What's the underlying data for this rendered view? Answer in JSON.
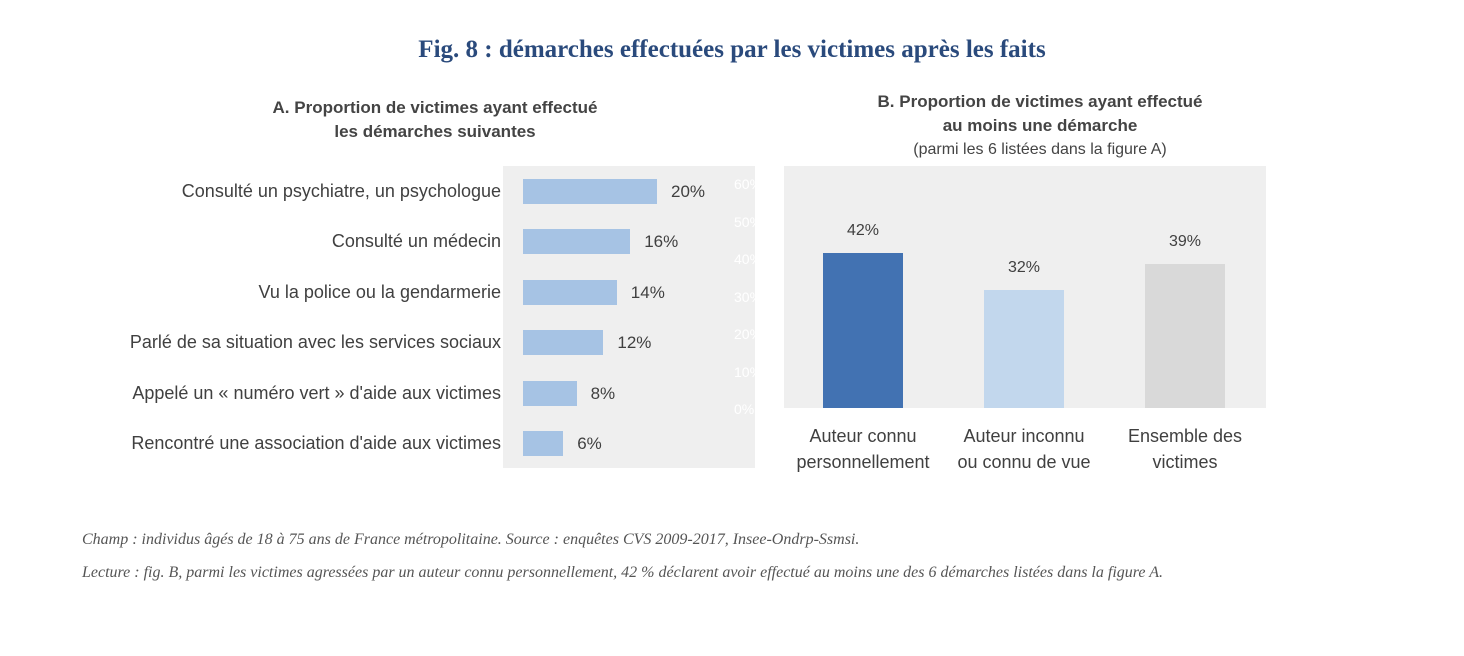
{
  "figure": {
    "title": "Fig. 8 : démarches effectuées par les victimes après les faits",
    "notes": [
      "Champ : individus âgés de 18 à 75 ans de France métropolitaine. Source : enquêtes CVS 2009-2017, Insee-Ondrp-Ssmsi.",
      "Lecture : fig. B, parmi les victimes agressées par un auteur connu personnellement, 42 % déclarent avoir effectué au moins une des 6 démarches listées dans la figure A."
    ]
  },
  "chart_data": [
    {
      "type": "bar",
      "orientation": "horizontal",
      "title_lines": [
        "A. Proportion de victimes ayant effectué",
        "les démarches suivantes"
      ],
      "categories": [
        "Consulté un psychiatre, un psychologue",
        "Consulté un médecin",
        "Vu la police ou la gendarmerie",
        "Parlé de sa situation avec les services sociaux",
        "Appelé un « numéro vert » d'aide aux victimes",
        "Rencontré une association d'aide aux victimes"
      ],
      "values": [
        20,
        16,
        14,
        12,
        8,
        6
      ],
      "value_labels": [
        "20%",
        "16%",
        "14%",
        "12%",
        "8%",
        "6%"
      ],
      "xlim": [
        0,
        60
      ],
      "faint_tick_labels": [
        "60%",
        "50%",
        "40%",
        "30%",
        "20%",
        "10%",
        "0%"
      ],
      "bar_color": "#a6c3e4",
      "background": "#efefef",
      "grid": false
    },
    {
      "type": "bar",
      "orientation": "vertical",
      "title_lines": [
        "B. Proportion  de victimes ayant effectué",
        "au moins une démarche"
      ],
      "subtitle": "(parmi les 6 listées dans la figure A)",
      "categories": [
        [
          "Auteur connu",
          "personnellement"
        ],
        [
          "Auteur inconnu",
          "ou connu de vue"
        ],
        [
          "Ensemble des",
          "victimes"
        ]
      ],
      "values": [
        42,
        32,
        39
      ],
      "value_labels": [
        "42%",
        "32%",
        "39%"
      ],
      "ylim": [
        0,
        60
      ],
      "colors": [
        "#4272b2",
        "#c2d7ed",
        "#d9d9d9"
      ],
      "background": "#efefef",
      "grid": false
    }
  ]
}
